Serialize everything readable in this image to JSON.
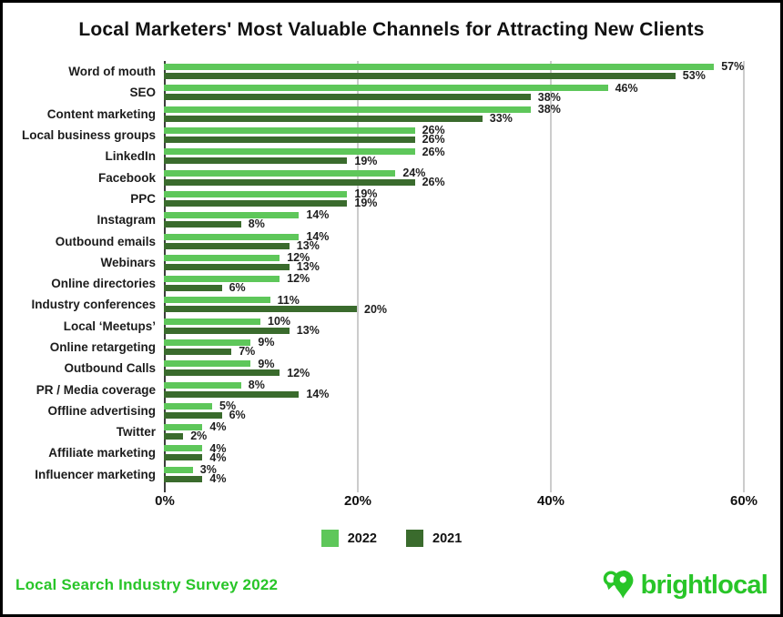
{
  "title": "Local Marketers' Most Valuable Channels for Attracting New Clients",
  "chart_data": {
    "type": "bar",
    "orientation": "horizontal",
    "title": "Local Marketers' Most Valuable Channels for Attracting New Clients",
    "categories": [
      "Word of mouth",
      "SEO",
      "Content marketing",
      "Local business groups",
      "LinkedIn",
      "Facebook",
      "PPC",
      "Instagram",
      "Outbound emails",
      "Webinars",
      "Online directories",
      "Industry conferences",
      "Local ‘Meetups’",
      "Online retargeting",
      "Outbound Calls",
      "PR / Media coverage",
      "Offline advertising",
      "Twitter",
      "Affiliate marketing",
      "Influencer marketing"
    ],
    "series": [
      {
        "name": "2022",
        "color": "#5ec75a",
        "values": [
          57,
          46,
          38,
          26,
          26,
          24,
          19,
          14,
          14,
          12,
          12,
          11,
          10,
          9,
          9,
          8,
          5,
          4,
          4,
          3
        ]
      },
      {
        "name": "2021",
        "color": "#3a6b2d",
        "values": [
          53,
          38,
          33,
          26,
          19,
          26,
          19,
          8,
          13,
          13,
          6,
          20,
          13,
          7,
          12,
          14,
          6,
          2,
          4,
          4
        ]
      }
    ],
    "value_suffix": "%",
    "xlim": [
      0,
      60
    ],
    "x_ticks": [
      {
        "value": 0,
        "label": "0%"
      },
      {
        "value": 20,
        "label": "20%"
      },
      {
        "value": 40,
        "label": "40%"
      },
      {
        "value": 60,
        "label": "60%"
      }
    ],
    "grid": true,
    "legend_position": "bottom"
  },
  "legend": {
    "items": [
      {
        "label": "2022",
        "color": "#5ec75a"
      },
      {
        "label": "2021",
        "color": "#3a6b2d"
      }
    ]
  },
  "footer": {
    "source": "Local Search Industry Survey 2022",
    "brand": "brightlocal"
  },
  "colors": {
    "series_2022": "#5ec75a",
    "series_2021": "#3a6b2d",
    "accent_green": "#28c528",
    "grid": "#cccccc",
    "axis": "#3d3d3d",
    "text": "#111111"
  },
  "icons": {
    "brand_icon": "location-pin-icon"
  }
}
